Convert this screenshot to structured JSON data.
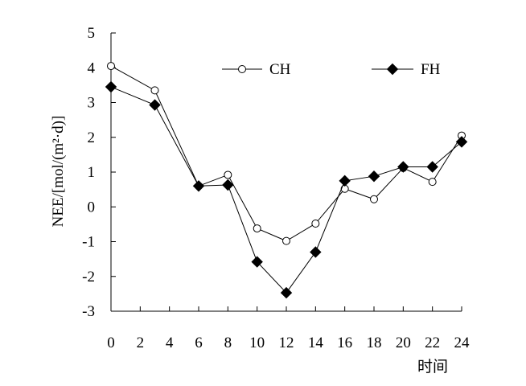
{
  "colors": {
    "axis": "#000000",
    "ch_marker_fill": "#ffffff",
    "fh_marker_fill": "#000000",
    "line": "#000000"
  },
  "chart_data": {
    "type": "line",
    "title": "",
    "xlabel": "时间",
    "ylabel": "NEE/[mol/(m²·d)]",
    "xlim": [
      0,
      24
    ],
    "ylim": [
      -3,
      5
    ],
    "xticks": [
      0,
      2,
      4,
      6,
      8,
      10,
      12,
      14,
      16,
      18,
      20,
      22,
      24
    ],
    "yticks": [
      -3,
      -2,
      -1,
      0,
      1,
      2,
      3,
      4,
      5
    ],
    "grid": false,
    "legend_position": "top-right",
    "x": [
      0,
      3,
      6,
      8,
      10,
      12,
      14,
      16,
      18,
      20,
      22,
      24
    ],
    "series": [
      {
        "name": "CH",
        "marker": "open-circle",
        "values": [
          4.05,
          3.35,
          0.6,
          0.92,
          -0.62,
          -0.98,
          -0.48,
          0.52,
          0.22,
          1.12,
          0.72,
          2.05
        ]
      },
      {
        "name": "FH",
        "marker": "filled-diamond",
        "values": [
          3.45,
          2.93,
          0.6,
          0.63,
          -1.58,
          -2.47,
          -1.3,
          0.75,
          0.88,
          1.15,
          1.15,
          1.87
        ]
      }
    ]
  }
}
